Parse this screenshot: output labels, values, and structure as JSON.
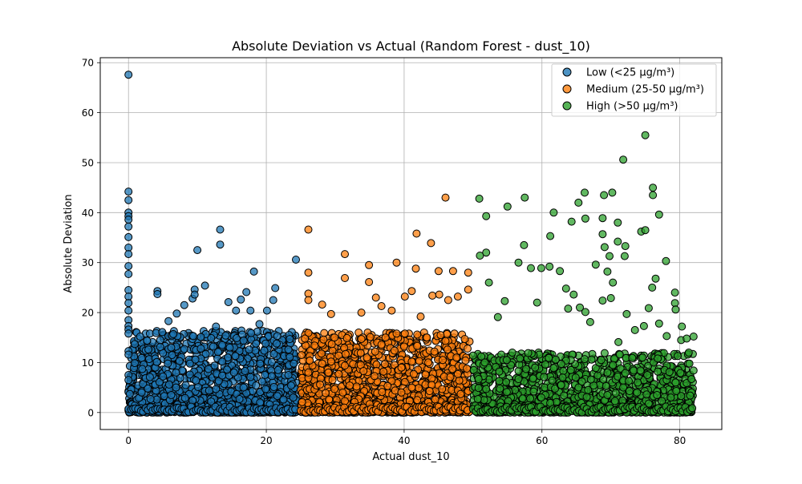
{
  "chart_data": {
    "type": "scatter",
    "title": "Absolute Deviation vs Actual (Random Forest - dust_10)",
    "xlabel": "Actual dust_10",
    "ylabel": "Absolute Deviation",
    "xlim": [
      -4.1,
      86.1
    ],
    "ylim": [
      -3.4,
      71.0
    ],
    "xticks": [
      0,
      20,
      40,
      60,
      80
    ],
    "yticks": [
      0,
      10,
      20,
      30,
      40,
      50,
      60,
      70
    ],
    "grid": true,
    "legend_position": "top-right",
    "series": [
      {
        "name": "Low (<25 μg/m³)",
        "color": "#1f77b4",
        "outliers": [
          [
            0,
            67.6
          ],
          [
            0,
            44.2
          ],
          [
            0,
            42.5
          ],
          [
            0,
            40
          ],
          [
            0,
            39.3
          ],
          [
            0,
            38.6
          ],
          [
            0,
            37.2
          ],
          [
            0,
            35.1
          ],
          [
            0,
            33
          ],
          [
            0,
            31.7
          ],
          [
            0,
            29.3
          ],
          [
            0,
            27.7
          ],
          [
            0,
            24.5
          ],
          [
            0,
            23.2
          ],
          [
            0,
            21.9
          ],
          [
            0,
            20.4
          ],
          [
            0,
            18.5
          ],
          [
            0,
            17.3
          ],
          [
            0,
            16.6
          ],
          [
            0,
            15.8
          ],
          [
            0,
            12.3
          ],
          [
            0,
            11.6
          ],
          [
            0,
            7.5
          ],
          [
            0,
            6.5
          ],
          [
            4.2,
            24.3
          ],
          [
            4.2,
            23.7
          ],
          [
            7,
            19.8
          ],
          [
            8.1,
            21.5
          ],
          [
            9.3,
            22.8
          ],
          [
            9.6,
            24.6
          ],
          [
            9.6,
            23.6
          ],
          [
            10,
            32.5
          ],
          [
            11.1,
            25.4
          ],
          [
            13.3,
            33.6
          ],
          [
            13.3,
            36.6
          ],
          [
            14.5,
            22.1
          ],
          [
            15.6,
            20.4
          ],
          [
            16.3,
            22.6
          ],
          [
            17.1,
            24.1
          ],
          [
            17.7,
            20.4
          ],
          [
            18.2,
            28.2
          ],
          [
            19,
            17.7
          ],
          [
            20.1,
            20.4
          ],
          [
            21,
            22.5
          ],
          [
            21.3,
            24.9
          ],
          [
            24.3,
            30.6
          ],
          [
            5.8,
            18.3
          ],
          [
            6.5,
            15.7
          ],
          [
            12.7,
            17.2
          ],
          [
            2.7,
            14.4
          ],
          [
            4.6,
            13.1
          ]
        ],
        "dense_band": {
          "x_range": [
            0,
            24.5
          ],
          "y_range": [
            0,
            16.4
          ]
        }
      },
      {
        "name": "Medium (25-50 μg/m³)",
        "color": "#ff7f0e",
        "outliers": [
          [
            26.1,
            36.6
          ],
          [
            26.1,
            28
          ],
          [
            26.1,
            23.8
          ],
          [
            26.1,
            22.5
          ],
          [
            31.4,
            31.7
          ],
          [
            31.4,
            26.9
          ],
          [
            34.9,
            29.5
          ],
          [
            34.9,
            26.1
          ],
          [
            35.9,
            23
          ],
          [
            38.2,
            20.4
          ],
          [
            38.9,
            30
          ],
          [
            40.1,
            23.2
          ],
          [
            41.1,
            24.3
          ],
          [
            41.7,
            28.8
          ],
          [
            41.8,
            35.8
          ],
          [
            43.9,
            33.9
          ],
          [
            44.1,
            23.4
          ],
          [
            45,
            28.3
          ],
          [
            45.1,
            23.6
          ],
          [
            46,
            43
          ],
          [
            46.4,
            22.5
          ],
          [
            47.1,
            28.3
          ],
          [
            47.8,
            23.2
          ],
          [
            49.3,
            28
          ],
          [
            49.3,
            24.6
          ],
          [
            33.8,
            20
          ],
          [
            36.7,
            21.3
          ],
          [
            28.1,
            21.6
          ],
          [
            29.4,
            19.7
          ],
          [
            42.4,
            19.2
          ]
        ],
        "dense_band": {
          "x_range": [
            25,
            49.5
          ],
          "y_range": [
            0,
            16
          ]
        }
      },
      {
        "name": "High (>50 μg/m³)",
        "color": "#2ca02c",
        "outliers": [
          [
            75,
            55.5
          ],
          [
            71.8,
            50.6
          ],
          [
            76.1,
            45
          ],
          [
            76.1,
            43.5
          ],
          [
            70.2,
            44
          ],
          [
            69,
            43.5
          ],
          [
            66.2,
            44
          ],
          [
            65.3,
            42
          ],
          [
            57.5,
            43
          ],
          [
            50.9,
            42.8
          ],
          [
            55,
            41.2
          ],
          [
            51.9,
            39.3
          ],
          [
            66.3,
            38.8
          ],
          [
            64.3,
            38.2
          ],
          [
            68.8,
            38.9
          ],
          [
            71,
            38
          ],
          [
            77,
            39.6
          ],
          [
            72.1,
            33.3
          ],
          [
            74.4,
            36.2
          ],
          [
            75,
            36.5
          ],
          [
            68.8,
            35.7
          ],
          [
            61.2,
            35.3
          ],
          [
            57.4,
            33.5
          ],
          [
            51.9,
            32
          ],
          [
            51,
            31.4
          ],
          [
            69.1,
            33.1
          ],
          [
            71,
            34.2
          ],
          [
            69.8,
            31.3
          ],
          [
            72,
            31.3
          ],
          [
            76,
            25
          ],
          [
            76.5,
            26.8
          ],
          [
            78,
            30.3
          ],
          [
            69.5,
            28.2
          ],
          [
            70.3,
            26
          ],
          [
            67.8,
            29.6
          ],
          [
            58.4,
            28.9
          ],
          [
            56.6,
            30
          ],
          [
            59.9,
            28.9
          ],
          [
            61.1,
            29.2
          ],
          [
            62.6,
            28.3
          ],
          [
            63.5,
            24.8
          ],
          [
            64.6,
            23.6
          ],
          [
            65.5,
            21
          ],
          [
            66.3,
            20.1
          ],
          [
            68.8,
            22.4
          ],
          [
            70,
            22.9
          ],
          [
            72.3,
            19.7
          ],
          [
            75.5,
            20.9
          ],
          [
            77,
            17.8
          ],
          [
            79.3,
            24
          ],
          [
            79.3,
            21.9
          ],
          [
            79.4,
            20.6
          ],
          [
            80.2,
            14.5
          ],
          [
            81,
            14.8
          ],
          [
            82,
            15.2
          ],
          [
            80.3,
            17.2
          ],
          [
            78.1,
            15.3
          ],
          [
            73.5,
            16.5
          ],
          [
            74.8,
            17.3
          ],
          [
            61.7,
            40
          ],
          [
            63.8,
            20.8
          ],
          [
            67,
            18.1
          ],
          [
            71.1,
            14.1
          ],
          [
            52.3,
            26
          ],
          [
            54.6,
            22.3
          ],
          [
            53.6,
            19.1
          ],
          [
            59.3,
            22
          ]
        ],
        "dense_band": {
          "x_range": [
            50,
            82
          ],
          "y_range": [
            0,
            12
          ]
        }
      }
    ]
  }
}
